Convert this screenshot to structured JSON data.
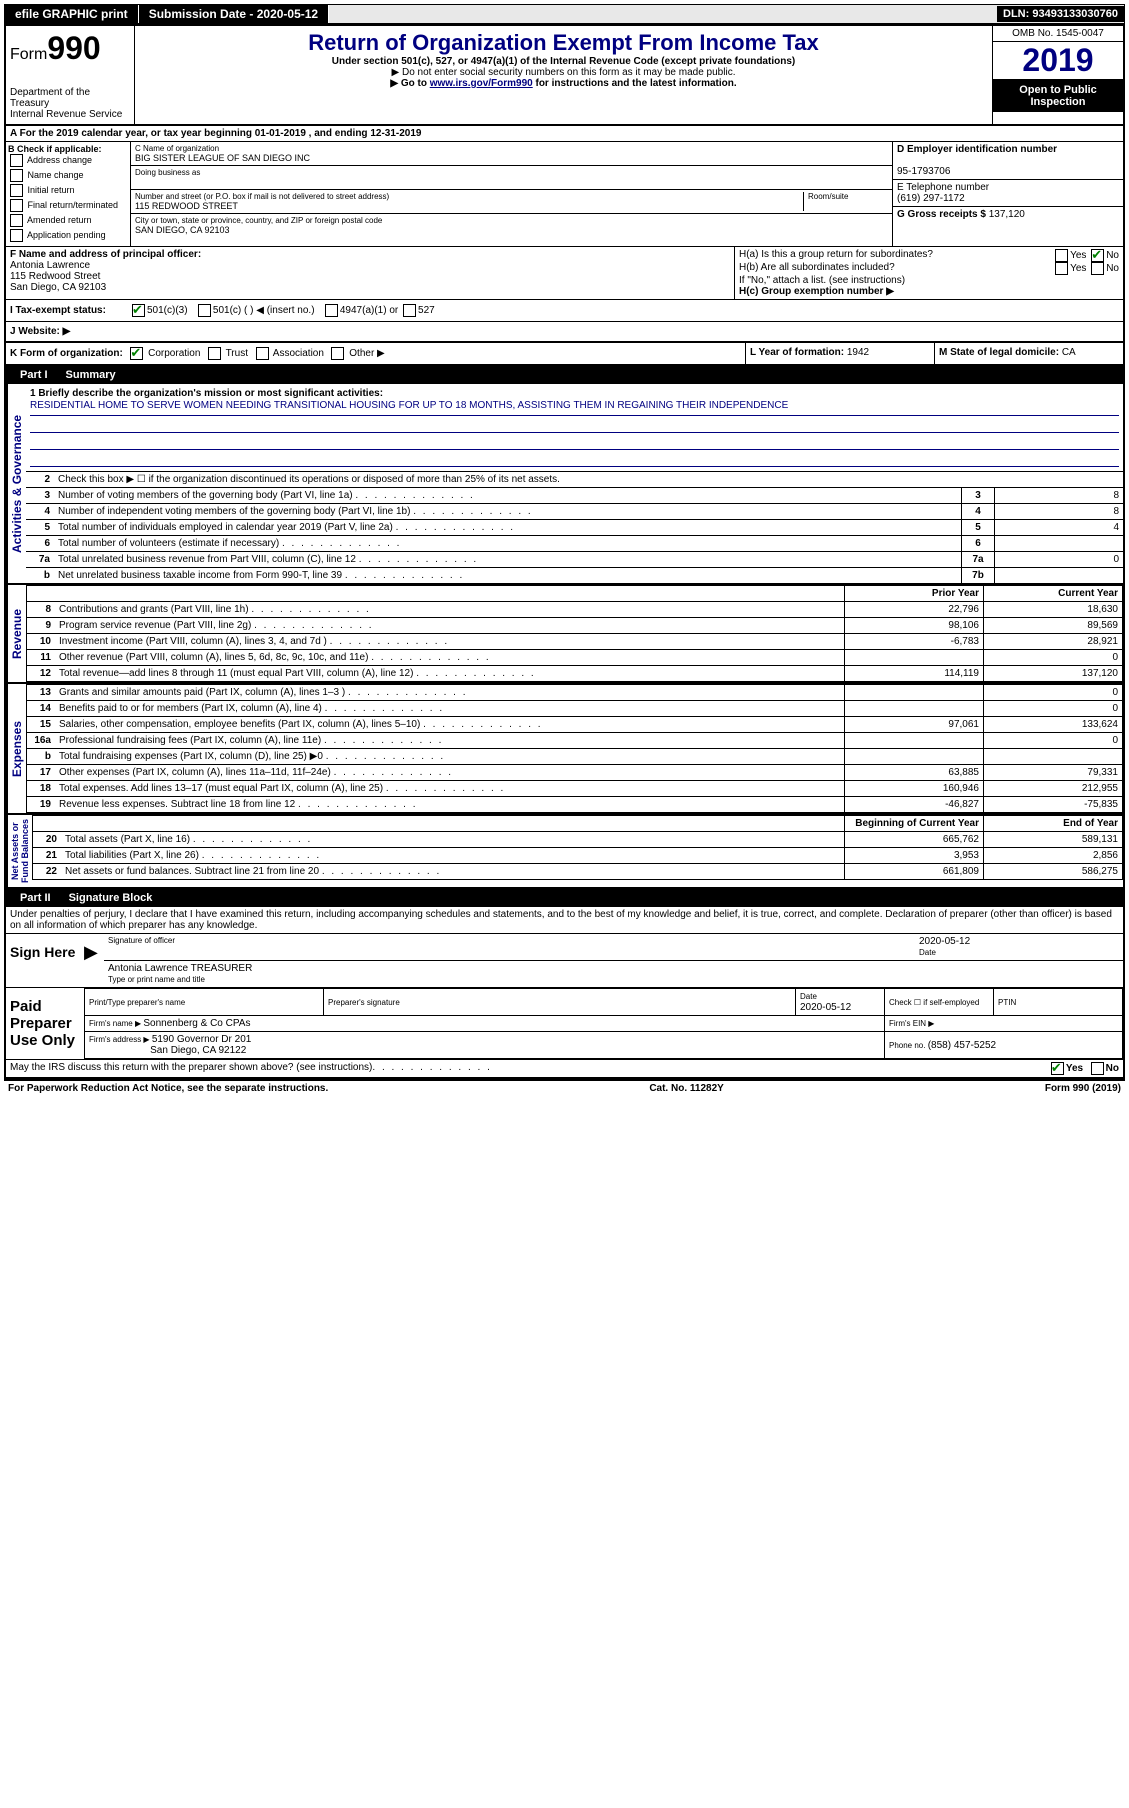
{
  "topbar": {
    "efile": "efile GRAPHIC print",
    "submission_label": "Submission Date - ",
    "submission_date": "2020-05-12",
    "dln_label": "DLN: ",
    "dln": "93493133030760"
  },
  "header": {
    "form_label": "Form",
    "form_number": "990",
    "dept": "Department of the Treasury\nInternal Revenue Service",
    "title": "Return of Organization Exempt From Income Tax",
    "subtitle": "Under section 501(c), 527, or 4947(a)(1) of the Internal Revenue Code (except private foundations)",
    "note1": "▶ Do not enter social security numbers on this form as it may be made public.",
    "note2_pre": "▶ Go to ",
    "note2_link": "www.irs.gov/Form990",
    "note2_post": " for instructions and the latest information.",
    "omb": "OMB No. 1545-0047",
    "year": "2019",
    "open_public": "Open to Public Inspection"
  },
  "row_a": "A For the 2019 calendar year, or tax year beginning 01-01-2019   , and ending 12-31-2019",
  "section_b": {
    "label": "B Check if applicable:",
    "items": [
      "Address change",
      "Name change",
      "Initial return",
      "Final return/terminated",
      "Amended return",
      "Application pending"
    ]
  },
  "section_c": {
    "name_label": "C Name of organization",
    "name": "BIG SISTER LEAGUE OF SAN DIEGO INC",
    "dba_label": "Doing business as",
    "street_label": "Number and street (or P.O. box if mail is not delivered to street address)",
    "room_label": "Room/suite",
    "street": "115 REDWOOD STREET",
    "city_label": "City or town, state or province, country, and ZIP or foreign postal code",
    "city": "SAN DIEGO, CA  92103"
  },
  "section_d": {
    "ein_label": "D Employer identification number",
    "ein": "95-1793706",
    "phone_label": "E Telephone number",
    "phone": "(619) 297-1172",
    "gross_label": "G Gross receipts $ ",
    "gross": "137,120"
  },
  "section_f": {
    "label": "F  Name and address of principal officer:",
    "name": "Antonia Lawrence",
    "addr1": "115 Redwood Street",
    "addr2": "San Diego, CA  92103"
  },
  "section_h": {
    "ha": "H(a)  Is this a group return for subordinates?",
    "hb": "H(b)  Are all subordinates included?",
    "hb_note": "If \"No,\" attach a list. (see instructions)",
    "hc": "H(c)  Group exemption number ▶",
    "yes": "Yes",
    "no": "No"
  },
  "tax_exempt": {
    "label": "I  Tax-exempt status:",
    "opt1": "501(c)(3)",
    "opt2": "501(c) (   ) ◀ (insert no.)",
    "opt3": "4947(a)(1) or",
    "opt4": "527"
  },
  "website": {
    "label": "J  Website: ▶"
  },
  "klm": {
    "k": "K Form of organization:",
    "k_opts": [
      "Corporation",
      "Trust",
      "Association",
      "Other ▶"
    ],
    "l_label": "L Year of formation: ",
    "l_val": "1942",
    "m_label": "M State of legal domicile: ",
    "m_val": "CA"
  },
  "part1": {
    "label": "Part I",
    "title": "Summary"
  },
  "mission": {
    "line1_label": "1  Briefly describe the organization's mission or most significant activities:",
    "text": "RESIDENTIAL HOME TO SERVE WOMEN NEEDING TRANSITIONAL HOUSING FOR UP TO 18 MONTHS, ASSISTING THEM IN REGAINING THEIR INDEPENDENCE"
  },
  "gov_lines": {
    "l2": "Check this box ▶ ☐  if the organization discontinued its operations or disposed of more than 25% of its net assets.",
    "l3": "Number of voting members of the governing body (Part VI, line 1a)",
    "l4": "Number of independent voting members of the governing body (Part VI, line 1b)",
    "l5": "Total number of individuals employed in calendar year 2019 (Part V, line 2a)",
    "l6": "Total number of volunteers (estimate if necessary)",
    "l7a": "Total unrelated business revenue from Part VIII, column (C), line 12",
    "l7b": "Net unrelated business taxable income from Form 990-T, line 39",
    "v3": "8",
    "v4": "8",
    "v5": "4",
    "v6": "",
    "v7a": "0",
    "v7b": ""
  },
  "col_headers": {
    "prior": "Prior Year",
    "current": "Current Year",
    "begin": "Beginning of Current Year",
    "end": "End of Year"
  },
  "revenue": [
    {
      "ln": "8",
      "desc": "Contributions and grants (Part VIII, line 1h)",
      "prior": "22,796",
      "curr": "18,630"
    },
    {
      "ln": "9",
      "desc": "Program service revenue (Part VIII, line 2g)",
      "prior": "98,106",
      "curr": "89,569"
    },
    {
      "ln": "10",
      "desc": "Investment income (Part VIII, column (A), lines 3, 4, and 7d )",
      "prior": "-6,783",
      "curr": "28,921"
    },
    {
      "ln": "11",
      "desc": "Other revenue (Part VIII, column (A), lines 5, 6d, 8c, 9c, 10c, and 11e)",
      "prior": "",
      "curr": "0"
    },
    {
      "ln": "12",
      "desc": "Total revenue—add lines 8 through 11 (must equal Part VIII, column (A), line 12)",
      "prior": "114,119",
      "curr": "137,120"
    }
  ],
  "expenses": [
    {
      "ln": "13",
      "desc": "Grants and similar amounts paid (Part IX, column (A), lines 1–3 )",
      "prior": "",
      "curr": "0"
    },
    {
      "ln": "14",
      "desc": "Benefits paid to or for members (Part IX, column (A), line 4)",
      "prior": "",
      "curr": "0"
    },
    {
      "ln": "15",
      "desc": "Salaries, other compensation, employee benefits (Part IX, column (A), lines 5–10)",
      "prior": "97,061",
      "curr": "133,624"
    },
    {
      "ln": "16a",
      "desc": "Professional fundraising fees (Part IX, column (A), line 11e)",
      "prior": "",
      "curr": "0"
    },
    {
      "ln": "b",
      "desc": "Total fundraising expenses (Part IX, column (D), line 25) ▶0",
      "prior": "shaded",
      "curr": "shaded"
    },
    {
      "ln": "17",
      "desc": "Other expenses (Part IX, column (A), lines 11a–11d, 11f–24e)",
      "prior": "63,885",
      "curr": "79,331"
    },
    {
      "ln": "18",
      "desc": "Total expenses. Add lines 13–17 (must equal Part IX, column (A), line 25)",
      "prior": "160,946",
      "curr": "212,955"
    },
    {
      "ln": "19",
      "desc": "Revenue less expenses. Subtract line 18 from line 12",
      "prior": "-46,827",
      "curr": "-75,835"
    }
  ],
  "netassets": [
    {
      "ln": "20",
      "desc": "Total assets (Part X, line 16)",
      "prior": "665,762",
      "curr": "589,131"
    },
    {
      "ln": "21",
      "desc": "Total liabilities (Part X, line 26)",
      "prior": "3,953",
      "curr": "2,856"
    },
    {
      "ln": "22",
      "desc": "Net assets or fund balances. Subtract line 21 from line 20",
      "prior": "661,809",
      "curr": "586,275"
    }
  ],
  "vert_labels": {
    "gov": "Activities & Governance",
    "rev": "Revenue",
    "exp": "Expenses",
    "net": "Net Assets or\nFund Balances"
  },
  "part2": {
    "label": "Part II",
    "title": "Signature Block",
    "decl": "Under penalties of perjury, I declare that I have examined this return, including accompanying schedules and statements, and to the best of my knowledge and belief, it is true, correct, and complete. Declaration of preparer (other than officer) is based on all information of which preparer has any knowledge."
  },
  "sign": {
    "here": "Sign Here",
    "sig_officer": "Signature of officer",
    "date": "Date",
    "date_val": "2020-05-12",
    "name_title": "Antonia Lawrence  TREASURER",
    "type_name": "Type or print name and title"
  },
  "preparer": {
    "label": "Paid Preparer Use Only",
    "print_name": "Print/Type preparer's name",
    "prep_sig": "Preparer's signature",
    "date_label": "Date",
    "date_val": "2020-05-12",
    "check_label": "Check ☐ if self-employed",
    "ptin": "PTIN",
    "firm_name_label": "Firm's name     ▶ ",
    "firm_name": "Sonnenberg & Co CPAs",
    "firm_ein": "Firm's EIN ▶",
    "firm_addr_label": "Firm's address ▶ ",
    "firm_addr1": "5190 Governor Dr 201",
    "firm_addr2": "San Diego, CA  92122",
    "phone_label": "Phone no. ",
    "phone": "(858) 457-5252"
  },
  "footer": {
    "irs_q": "May the IRS discuss this return with the preparer shown above? (see instructions)",
    "yes": "Yes",
    "no": "No",
    "paperwork": "For Paperwork Reduction Act Notice, see the separate instructions.",
    "cat": "Cat. No. 11282Y",
    "form": "Form 990 (2019)"
  }
}
